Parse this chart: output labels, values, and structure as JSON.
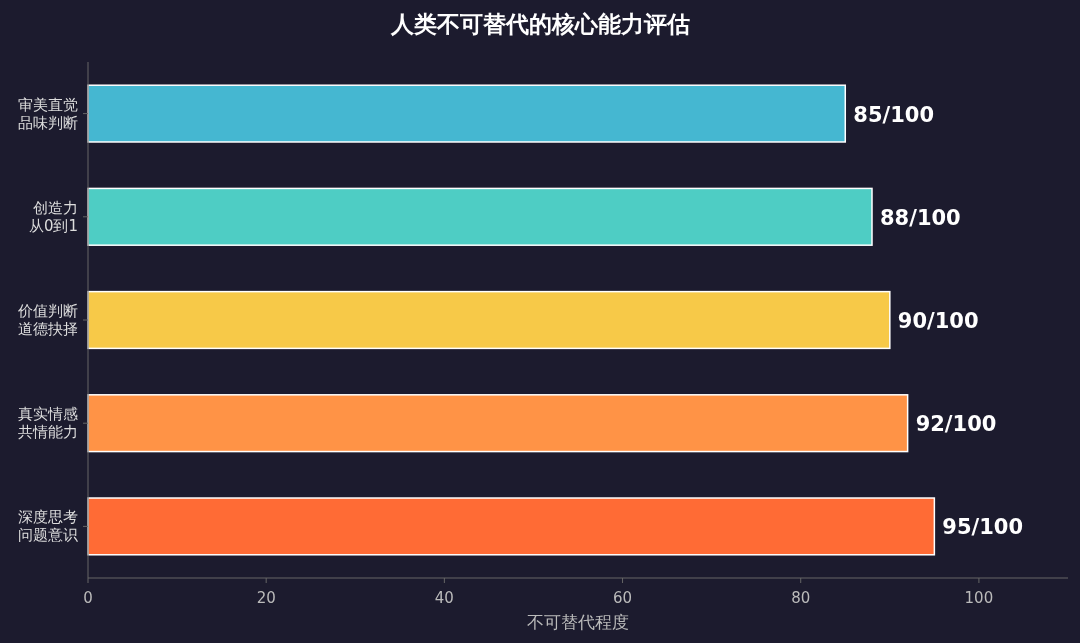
{
  "chart_data": {
    "type": "bar",
    "orientation": "horizontal",
    "title": "人类不可替代的核心能力评估",
    "xlabel": "不可替代程度",
    "categories": [
      "审美直觉品味判断",
      "创造力从0到1",
      "价值判断道德抉择",
      "真实情感共情能力",
      "深度思考问题意识"
    ],
    "values": [
      85,
      88,
      90,
      92,
      95
    ],
    "colors": [
      "#45b7d1",
      "#4ecdc4",
      "#f7c948",
      "#ff9346",
      "#ff6b35"
    ],
    "value_labels": [
      "85/100",
      "88/100",
      "90/100",
      "92/100",
      "95/100"
    ],
    "xlim": [
      0,
      110
    ],
    "xticks": [
      0,
      20,
      40,
      60,
      80,
      100
    ],
    "grid": false
  }
}
